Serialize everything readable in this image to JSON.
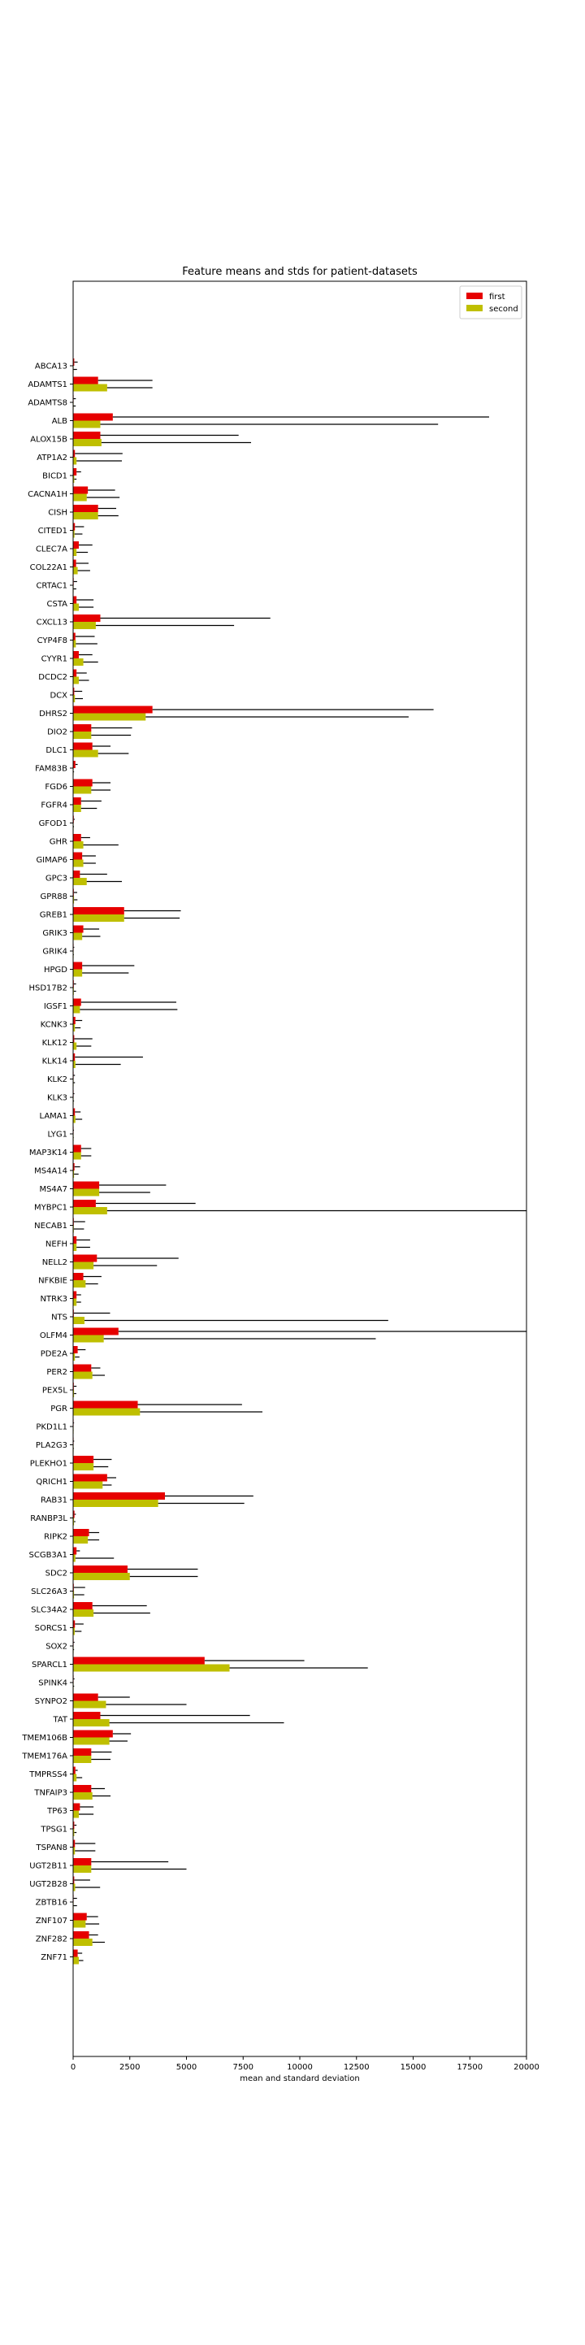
{
  "chart_data": {
    "type": "bar",
    "orientation": "horizontal",
    "title": "Feature means and stds for patient-datasets",
    "xlabel": "mean and standard deviation",
    "ylabel": "",
    "xlim": [
      0,
      20000
    ],
    "xticks": [
      0,
      2500,
      5000,
      7500,
      10000,
      12500,
      15000,
      17500,
      20000
    ],
    "legend_position": "top-right",
    "error_bars": "one-sided (mean + std)",
    "categories": [
      "ABCA13",
      "ADAMTS1",
      "ADAMTS8",
      "ALB",
      "ALOX15B",
      "ATP1A2",
      "BICD1",
      "CACNA1H",
      "CISH",
      "CITED1",
      "CLEC7A",
      "COL22A1",
      "CRTAC1",
      "CSTA",
      "CXCL13",
      "CYP4F8",
      "CYYR1",
      "DCDC2",
      "DCX",
      "DHRS2",
      "DIO2",
      "DLC1",
      "FAM83B",
      "FGD6",
      "FGFR4",
      "GFOD1",
      "GHR",
      "GIMAP6",
      "GPC3",
      "GPR88",
      "GREB1",
      "GRIK3",
      "GRIK4",
      "HPGD",
      "HSD17B2",
      "IGSF1",
      "KCNK3",
      "KLK12",
      "KLK14",
      "KLK2",
      "KLK3",
      "LAMA1",
      "LYG1",
      "MAP3K14",
      "MS4A14",
      "MS4A7",
      "MYBPC1",
      "NECAB1",
      "NEFH",
      "NELL2",
      "NFKBIE",
      "NTRK3",
      "NTS",
      "OLFM4",
      "PDE2A",
      "PER2",
      "PEX5L",
      "PGR",
      "PKD1L1",
      "PLA2G3",
      "PLEKHO1",
      "QRICH1",
      "RAB31",
      "RANBP3L",
      "RIPK2",
      "SCGB3A1",
      "SDC2",
      "SLC26A3",
      "SLC34A2",
      "SORCS1",
      "SOX2",
      "SPARCL1",
      "SPINK4",
      "SYNPO2",
      "TAT",
      "TMEM106B",
      "TMEM176A",
      "TMPRSS4",
      "TNFAIP3",
      "TP63",
      "TPSG1",
      "TSPAN8",
      "UGT2B11",
      "UGT2B28",
      "ZBTB16",
      "ZNF107",
      "ZNF282",
      "ZNF71"
    ],
    "series": [
      {
        "name": "first",
        "color": "#e60000",
        "values": [
          50,
          1100,
          20,
          1750,
          1200,
          80,
          150,
          650,
          1100,
          80,
          250,
          130,
          25,
          150,
          1200,
          100,
          250,
          150,
          50,
          3500,
          800,
          850,
          100,
          850,
          350,
          30,
          350,
          400,
          300,
          30,
          2250,
          450,
          20,
          400,
          30,
          350,
          100,
          50,
          80,
          20,
          15,
          80,
          15,
          350,
          60,
          1150,
          1000,
          30,
          150,
          1050,
          450,
          150,
          30,
          2000,
          200,
          800,
          30,
          2850,
          20,
          15,
          900,
          1500,
          4050,
          60,
          700,
          150,
          2400,
          30,
          850,
          80,
          20,
          5800,
          20,
          1100,
          1200,
          1750,
          800,
          100,
          800,
          300,
          50,
          80,
          800,
          50,
          20,
          600,
          700,
          200
        ],
        "stds": [
          150,
          2400,
          100,
          16600,
          6100,
          2100,
          200,
          1200,
          800,
          400,
          600,
          550,
          150,
          750,
          7500,
          850,
          600,
          450,
          350,
          12400,
          1800,
          800,
          100,
          800,
          900,
          40,
          400,
          600,
          1200,
          150,
          2500,
          700,
          30,
          2300,
          100,
          4200,
          300,
          800,
          3000,
          60,
          40,
          250,
          20,
          450,
          250,
          2950,
          4400,
          500,
          600,
          3600,
          800,
          200,
          1600,
          18000,
          350,
          400,
          120,
          4600,
          20,
          30,
          800,
          400,
          3900,
          60,
          450,
          150,
          3100,
          500,
          2400,
          380,
          40,
          4400,
          40,
          1400,
          6600,
          800,
          900,
          100,
          600,
          600,
          100,
          900,
          3400,
          700,
          150,
          500,
          400,
          200
        ]
      },
      {
        "name": "second",
        "color": "#bfbf00",
        "values": [
          20,
          1500,
          15,
          1200,
          1250,
          150,
          50,
          600,
          1100,
          60,
          150,
          200,
          20,
          250,
          1000,
          120,
          450,
          250,
          80,
          3200,
          800,
          1100,
          20,
          800,
          350,
          15,
          450,
          450,
          600,
          40,
          2250,
          400,
          10,
          400,
          30,
          300,
          80,
          150,
          100,
          20,
          10,
          100,
          10,
          350,
          40,
          1150,
          1500,
          30,
          150,
          900,
          550,
          150,
          500,
          1350,
          80,
          850,
          40,
          2950,
          10,
          10,
          900,
          1300,
          3750,
          40,
          650,
          100,
          2500,
          40,
          900,
          70,
          10,
          6900,
          15,
          1450,
          1600,
          1600,
          800,
          150,
          850,
          250,
          50,
          80,
          800,
          90,
          20,
          550,
          850,
          250
        ],
        "stds": [
          150,
          2000,
          100,
          14900,
          6600,
          2000,
          100,
          1450,
          900,
          350,
          500,
          550,
          120,
          650,
          6100,
          950,
          650,
          450,
          350,
          11600,
          1750,
          1350,
          20,
          850,
          700,
          20,
          1550,
          550,
          1550,
          150,
          2450,
          800,
          20,
          2050,
          100,
          4300,
          250,
          650,
          2000,
          60,
          30,
          300,
          15,
          450,
          200,
          2250,
          18500,
          450,
          600,
          2800,
          550,
          200,
          13400,
          12000,
          200,
          550,
          100,
          5400,
          10,
          20,
          650,
          400,
          3800,
          60,
          500,
          1700,
          3000,
          450,
          2500,
          300,
          30,
          6100,
          30,
          3550,
          7700,
          800,
          850,
          250,
          800,
          650,
          100,
          900,
          4200,
          1100,
          150,
          600,
          550,
          200
        ]
      }
    ]
  }
}
